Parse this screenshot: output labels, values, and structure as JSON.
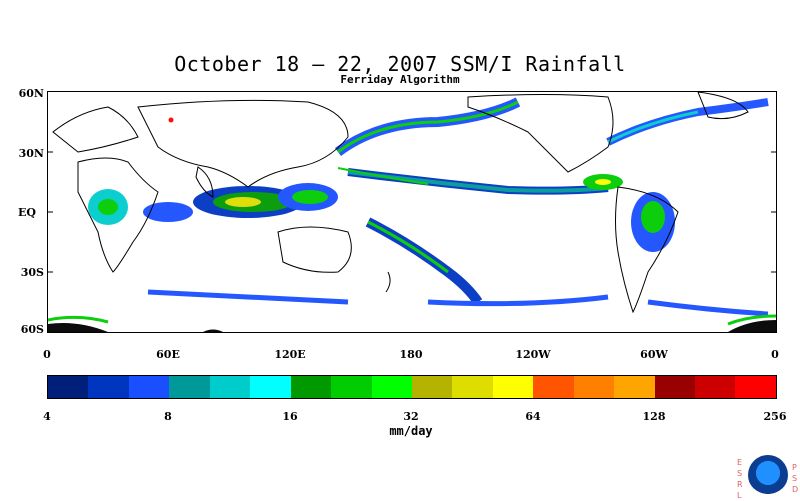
{
  "title": "October 18 – 22, 2007 SSM/I Rainfall",
  "subtitle": "Ferriday Algorithm",
  "lat_labels": [
    "60N",
    "30N",
    "EQ",
    "30S",
    "60S"
  ],
  "lon_labels": [
    "0",
    "60E",
    "120E",
    "180",
    "120W",
    "60W",
    "0"
  ],
  "colorbar": {
    "colors": [
      "#001f7a",
      "#0035c0",
      "#1a4fff",
      "#009999",
      "#00cccc",
      "#00ffff",
      "#009900",
      "#00cc00",
      "#00ff00",
      "#b3b300",
      "#dddd00",
      "#ffff00",
      "#ff5500",
      "#ff8000",
      "#ffa500",
      "#990000",
      "#cc0000",
      "#ff0000"
    ],
    "tick_labels": [
      "4",
      "8",
      "16",
      "32",
      "64",
      "128",
      "256"
    ],
    "unit": "mm/day"
  },
  "logo": {
    "left_letters": [
      "E",
      "S",
      "R",
      "L"
    ],
    "right_letters": [
      "P",
      "S",
      "D"
    ]
  }
}
